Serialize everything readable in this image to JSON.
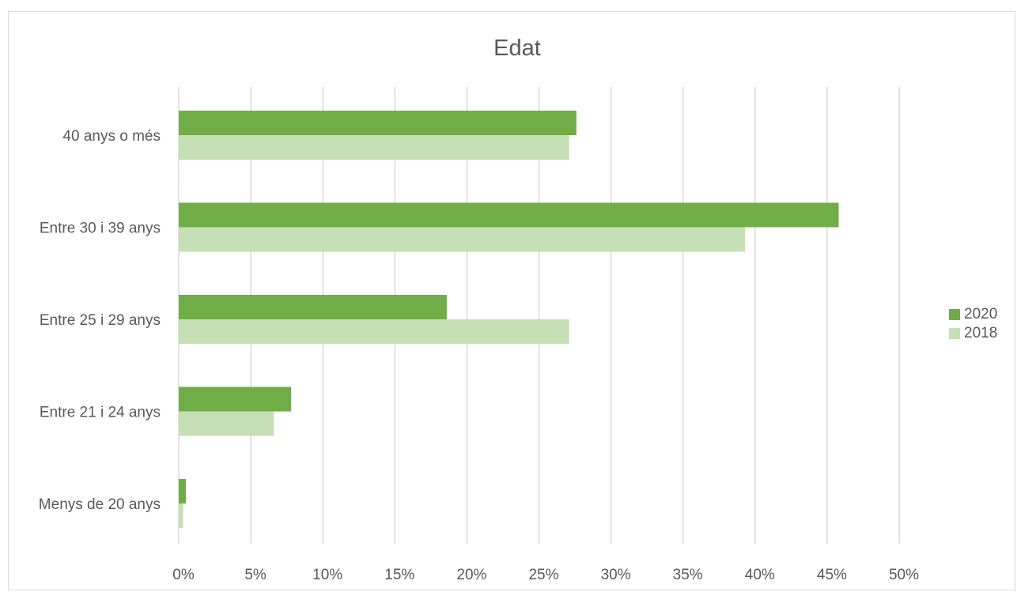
{
  "chart_data": {
    "type": "bar",
    "orientation": "horizontal",
    "title": "Edat",
    "xlabel": "",
    "ylabel": "",
    "categories": [
      "40 anys o més",
      "Entre 30 i 39 anys",
      "Entre 25 i 29 anys",
      "Entre 21 i 24 anys",
      "Menys de 20 anys"
    ],
    "series": [
      {
        "name": "2020",
        "color": "#70ad47",
        "values": [
          27.6,
          45.8,
          18.6,
          7.8,
          0.5
        ]
      },
      {
        "name": "2018",
        "color": "#c5e0b4",
        "values": [
          27.1,
          39.3,
          27.1,
          6.6,
          0.3
        ]
      }
    ],
    "xlim": [
      0,
      50
    ],
    "x_ticks": [
      "0%",
      "5%",
      "10%",
      "15%",
      "20%",
      "25%",
      "30%",
      "35%",
      "40%",
      "45%",
      "50%"
    ],
    "grid": "vertical",
    "legend_position": "right"
  }
}
